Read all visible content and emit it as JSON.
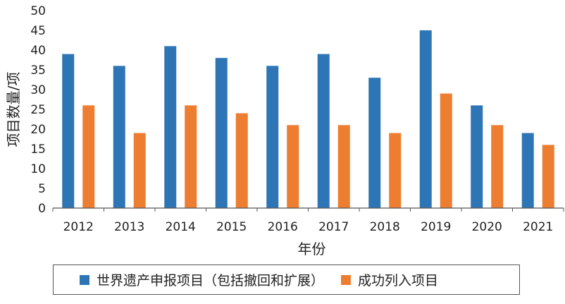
{
  "chart_data": {
    "type": "bar",
    "categories": [
      "2012",
      "2013",
      "2014",
      "2015",
      "2016",
      "2017",
      "2018",
      "2019",
      "2020",
      "2021"
    ],
    "series": [
      {
        "name": "世界遗产申报项目（包括撤回和扩展）",
        "values": [
          39,
          36,
          41,
          38,
          36,
          39,
          33,
          45,
          26,
          19
        ],
        "color": "#2e75b6"
      },
      {
        "name": "成功列入项目",
        "values": [
          26,
          19,
          26,
          24,
          21,
          21,
          19,
          29,
          21,
          16
        ],
        "color": "#ed7d31"
      }
    ],
    "xlabel": "年份",
    "ylabel": "项目数量/项",
    "ylim": [
      0,
      50
    ],
    "yticks": [
      0,
      5,
      10,
      15,
      20,
      25,
      30,
      35,
      40,
      45,
      50
    ],
    "grid": false,
    "legend_position": "bottom"
  }
}
